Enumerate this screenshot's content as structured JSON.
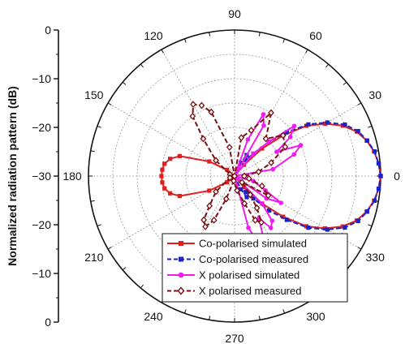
{
  "chart_data": {
    "type": "polar-line",
    "ylabel": "Normalized radiation pattern (dB)",
    "radial_ticks": [
      "0",
      "−10",
      "−20",
      "−30",
      "−20",
      "−10",
      "0"
    ],
    "radial_range": [
      -30,
      0
    ],
    "angle_ticks": [
      {
        "angle": 0,
        "label": "0"
      },
      {
        "angle": 30,
        "label": "30"
      },
      {
        "angle": 60,
        "label": "60"
      },
      {
        "angle": 90,
        "label": "90"
      },
      {
        "angle": 120,
        "label": "120"
      },
      {
        "angle": 150,
        "label": "150"
      },
      {
        "angle": 180,
        "label": "180"
      },
      {
        "angle": 210,
        "label": "210"
      },
      {
        "angle": 240,
        "label": "240"
      },
      {
        "angle": 270,
        "label": "270"
      },
      {
        "angle": 300,
        "label": "300"
      },
      {
        "angle": 330,
        "label": "330"
      }
    ],
    "grid": true,
    "legend_position": "bottom-right",
    "series": [
      {
        "name": "Co-polarised simulated",
        "color": "#e0201e",
        "dash": "solid",
        "marker": "square",
        "points": [
          [
            0,
            0
          ],
          [
            5,
            -0.3
          ],
          [
            10,
            -0.9
          ],
          [
            15,
            -1.9
          ],
          [
            20,
            -3.3
          ],
          [
            25,
            -5.5
          ],
          [
            30,
            -8.5
          ],
          [
            35,
            -12
          ],
          [
            40,
            -17
          ],
          [
            45,
            -22
          ],
          [
            50,
            -27
          ],
          [
            60,
            -30
          ],
          [
            90,
            -30
          ],
          [
            120,
            -30
          ],
          [
            140,
            -28
          ],
          [
            150,
            -24
          ],
          [
            160,
            -18
          ],
          [
            165,
            -16.3
          ],
          [
            170,
            -15.4
          ],
          [
            175,
            -15.1
          ],
          [
            180,
            -15
          ],
          [
            185,
            -15.1
          ],
          [
            190,
            -15.4
          ],
          [
            195,
            -16.3
          ],
          [
            200,
            -18
          ],
          [
            210,
            -24
          ],
          [
            220,
            -28
          ],
          [
            240,
            -30
          ],
          [
            270,
            -30
          ],
          [
            300,
            -30
          ],
          [
            310,
            -27
          ],
          [
            315,
            -22
          ],
          [
            320,
            -17
          ],
          [
            325,
            -12
          ],
          [
            330,
            -8.5
          ],
          [
            335,
            -5.5
          ],
          [
            340,
            -3.3
          ],
          [
            345,
            -1.9
          ],
          [
            350,
            -0.9
          ],
          [
            355,
            -0.3
          ],
          [
            360,
            0
          ]
        ]
      },
      {
        "name": "Co-polarised measured",
        "color": "#1a22c8",
        "dash": "dashed",
        "marker": "square",
        "points": [
          [
            0,
            0
          ],
          [
            5,
            -0.3
          ],
          [
            10,
            -0.8
          ],
          [
            15,
            -1.8
          ],
          [
            20,
            -3.0
          ],
          [
            25,
            -5.0
          ],
          [
            30,
            -8.0
          ],
          [
            35,
            -11.5
          ],
          [
            40,
            -16
          ],
          [
            45,
            -20
          ],
          [
            50,
            -24
          ],
          [
            55,
            -26
          ],
          [
            60,
            -25
          ],
          [
            65,
            -27
          ],
          [
            70,
            -30
          ],
          [
            290,
            -30
          ],
          [
            295,
            -27
          ],
          [
            300,
            -25
          ],
          [
            305,
            -26
          ],
          [
            310,
            -24
          ],
          [
            315,
            -20
          ],
          [
            320,
            -16
          ],
          [
            325,
            -11.5
          ],
          [
            330,
            -8.0
          ],
          [
            335,
            -5.0
          ],
          [
            340,
            -3.0
          ],
          [
            345,
            -1.8
          ],
          [
            350,
            -0.8
          ],
          [
            355,
            -0.3
          ],
          [
            360,
            0
          ]
        ]
      },
      {
        "name": "X polarised simulated",
        "color": "#ee1cee",
        "dash": "solid",
        "marker": "circle",
        "points": [
          [
            0,
            -30
          ],
          [
            10,
            -22
          ],
          [
            20,
            -17
          ],
          [
            25,
            -15
          ],
          [
            30,
            -20
          ],
          [
            35,
            -16
          ],
          [
            40,
            -14
          ],
          [
            45,
            -20
          ],
          [
            50,
            -24
          ],
          [
            55,
            -30
          ],
          [
            60,
            -18
          ],
          [
            65,
            -16
          ],
          [
            70,
            -22
          ],
          [
            75,
            -30
          ],
          [
            280,
            -30
          ],
          [
            285,
            -19
          ],
          [
            290,
            -15
          ],
          [
            295,
            -16
          ],
          [
            300,
            -20
          ],
          [
            305,
            -17
          ],
          [
            310,
            -18
          ],
          [
            315,
            -22
          ],
          [
            320,
            -30
          ],
          [
            325,
            -22
          ],
          [
            330,
            -19
          ],
          [
            335,
            -23
          ],
          [
            345,
            -26
          ],
          [
            360,
            -30
          ]
        ]
      },
      {
        "name": "X polarised measured",
        "color": "#7a1010",
        "dash": "dashed",
        "marker": "diamond",
        "points": [
          [
            0,
            -28
          ],
          [
            10,
            -25
          ],
          [
            20,
            -22
          ],
          [
            30,
            -18
          ],
          [
            40,
            -17
          ],
          [
            50,
            -20
          ],
          [
            60,
            -15
          ],
          [
            70,
            -20
          ],
          [
            80,
            -22
          ],
          [
            90,
            -30
          ],
          [
            100,
            -24
          ],
          [
            110,
            -16
          ],
          [
            115,
            -14
          ],
          [
            120,
            -13
          ],
          [
            125,
            -15
          ],
          [
            130,
            -20
          ],
          [
            140,
            -25
          ],
          [
            160,
            -29
          ],
          [
            200,
            -29
          ],
          [
            220,
            -25
          ],
          [
            230,
            -22
          ],
          [
            235,
            -19
          ],
          [
            240,
            -18
          ],
          [
            245,
            -20
          ],
          [
            250,
            -25
          ],
          [
            260,
            -29
          ],
          [
            280,
            -27
          ],
          [
            290,
            -24
          ],
          [
            295,
            -20
          ],
          [
            300,
            -19
          ],
          [
            305,
            -22
          ],
          [
            310,
            -25
          ],
          [
            320,
            -28
          ],
          [
            330,
            -22
          ],
          [
            340,
            -24
          ],
          [
            350,
            -27
          ],
          [
            360,
            -28
          ]
        ]
      }
    ]
  }
}
